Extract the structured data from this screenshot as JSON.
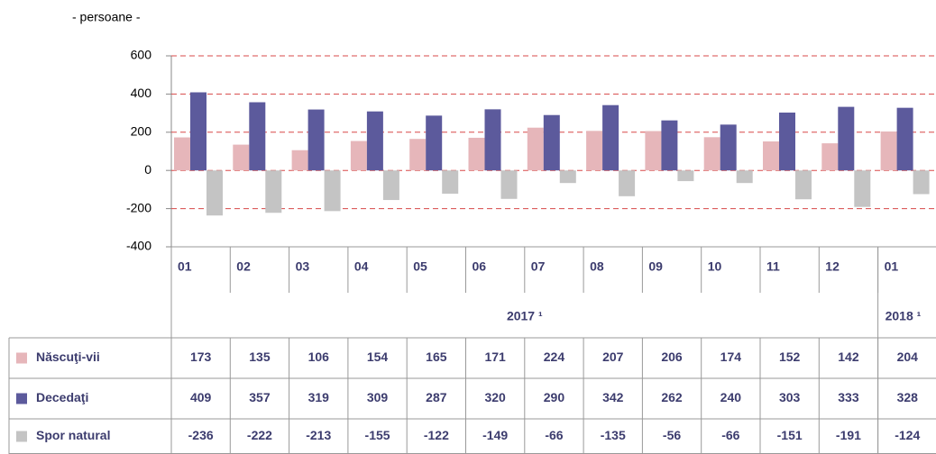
{
  "chart_data": {
    "type": "bar",
    "unit_label": "- persoane -",
    "categories": [
      "01",
      "02",
      "03",
      "04",
      "05",
      "06",
      "07",
      "08",
      "09",
      "10",
      "11",
      "12",
      "01"
    ],
    "year_groups": [
      {
        "label": "2017 ¹",
        "count": 12
      },
      {
        "label": "2018 ¹",
        "count": 1
      }
    ],
    "series": [
      {
        "name": "Născuţi-vii",
        "color": "#e6b6ba",
        "values": [
          173,
          135,
          106,
          154,
          165,
          171,
          224,
          207,
          206,
          174,
          152,
          142,
          204
        ]
      },
      {
        "name": "Decedaţi",
        "color": "#5c5a9c",
        "values": [
          409,
          357,
          319,
          309,
          287,
          320,
          290,
          342,
          262,
          240,
          303,
          333,
          328
        ]
      },
      {
        "name": "Spor natural",
        "color": "#c4c4c4",
        "values": [
          -236,
          -222,
          -213,
          -155,
          -122,
          -149,
          -66,
          -135,
          -56,
          -66,
          -151,
          -191,
          -124
        ]
      }
    ],
    "ylim": [
      -400,
      600
    ],
    "yticks": [
      -400,
      -200,
      0,
      200,
      400,
      600
    ],
    "grid": true
  }
}
